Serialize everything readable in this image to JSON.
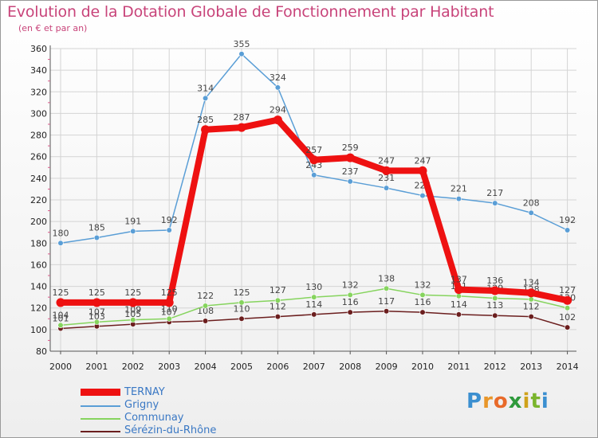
{
  "title": "Evolution de la Dotation Globale de Fonctionnement par Habitant",
  "subtitle": "(en € et par an)",
  "logo_text": "Proxiti",
  "chart_data": {
    "type": "line",
    "title": "Evolution de la Dotation Globale de Fonctionnement par Habitant",
    "subtitle": "(en € et par an)",
    "xlabel": "",
    "ylabel": "",
    "ylim": [
      80,
      360
    ],
    "yticks": [
      80,
      100,
      120,
      140,
      160,
      180,
      200,
      220,
      240,
      260,
      280,
      300,
      320,
      340,
      360
    ],
    "grid": true,
    "legend_position": "bottom-left",
    "x": [
      "2000",
      "2001",
      "2002",
      "2003",
      "2004",
      "2005",
      "2006",
      "2007",
      "2008",
      "2009",
      "2010",
      "2011",
      "2012",
      "2013",
      "2014"
    ],
    "series": [
      {
        "name": "Sérézin-du-Rhône",
        "color": "#6b1e1e",
        "values": [
          101,
          103,
          105,
          107,
          108,
          110,
          112,
          114,
          116,
          117,
          116,
          114,
          113,
          112,
          102
        ],
        "labels": [
          "101",
          "103",
          "105",
          "107",
          "108",
          "110",
          "112",
          "114",
          "116",
          "117",
          "116",
          "114",
          "113",
          "112",
          "102"
        ]
      },
      {
        "name": "Communay",
        "color": "#86d45e",
        "values": [
          104,
          107,
          109,
          110,
          122,
          125,
          127,
          130,
          132,
          138,
          132,
          131,
          129,
          128,
          120
        ],
        "labels": [
          "104",
          "107",
          "109",
          "110",
          "122",
          "125",
          "127",
          "130",
          "132",
          "138",
          "132",
          "131",
          "129",
          "128",
          "120"
        ]
      },
      {
        "name": "Grigny",
        "color": "#5a9ed6",
        "values": [
          180,
          185,
          191,
          192,
          314,
          355,
          324,
          243,
          237,
          231,
          224,
          221,
          217,
          208,
          192
        ],
        "labels": [
          "180",
          "185",
          "191",
          "192",
          "314",
          "355",
          "324",
          "243",
          "237",
          "231",
          "224",
          "221",
          "217",
          "208",
          "192"
        ]
      },
      {
        "name": "TERNAY",
        "color": "#ee1111",
        "values": [
          125,
          125,
          125,
          125,
          285,
          287,
          294,
          257,
          259,
          247,
          247,
          137,
          136,
          134,
          127
        ],
        "labels": [
          "125",
          "125",
          "125",
          "125",
          "285",
          "287",
          "294",
          "257",
          "259",
          "247",
          "247",
          "137",
          "136",
          "134",
          "127"
        ]
      }
    ]
  },
  "legend": [
    {
      "name": "TERNAY",
      "color": "#ee1111"
    },
    {
      "name": "Grigny",
      "color": "#5a9ed6"
    },
    {
      "name": "Communay",
      "color": "#86d45e"
    },
    {
      "name": "Sérézin-du-Rhône",
      "color": "#6b1e1e"
    }
  ]
}
